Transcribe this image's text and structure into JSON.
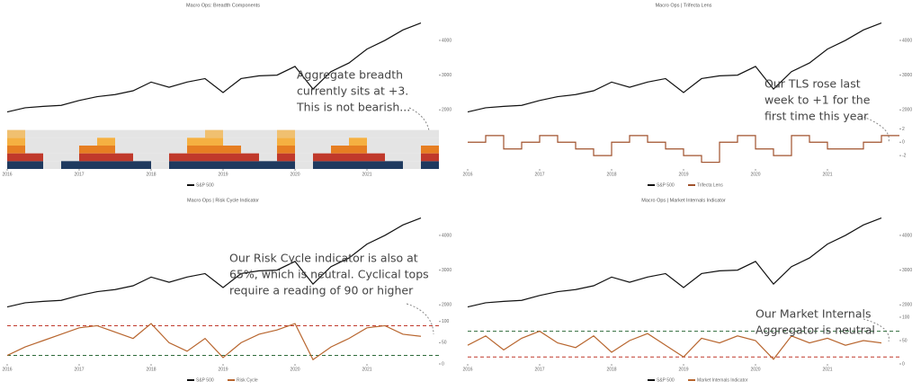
{
  "chart_data": [
    {
      "type": "breadth",
      "title": "Macro Ops: Breadth Components",
      "x": [
        2016,
        2016.25,
        2016.5,
        2016.75,
        2017,
        2017.25,
        2017.5,
        2017.75,
        2018,
        2018.25,
        2018.5,
        2018.75,
        2019,
        2019.25,
        2019.5,
        2019.75,
        2020,
        2020.25,
        2020.5,
        2020.75,
        2021,
        2021.25,
        2021.5,
        2021.75
      ],
      "xlim": [
        2016,
        2022
      ],
      "xticks": [
        2016,
        2017,
        2018,
        2019,
        2020,
        2021
      ],
      "price": {
        "name": "S&P 500",
        "color": "#111111",
        "values": [
          1940,
          2060,
          2100,
          2130,
          2270,
          2380,
          2440,
          2550,
          2800,
          2650,
          2800,
          2900,
          2500,
          2900,
          2980,
          3000,
          3250,
          2600,
          3100,
          3350,
          3750,
          4000,
          4300,
          4500
        ],
        "ylim": [
          1800,
          4800
        ],
        "yticks": [
          2000,
          3000,
          4000
        ]
      },
      "indicator": {
        "values": [
          5,
          2,
          0,
          1,
          3,
          4,
          2,
          1,
          0,
          2,
          4,
          5,
          3,
          2,
          1,
          5,
          0,
          2,
          3,
          4,
          2,
          1,
          0,
          3
        ],
        "ylim": [
          0,
          6
        ],
        "colors": [
          "#1f3a5f",
          "#c0392b",
          "#e67e22",
          "#f5b041",
          "#f0c070"
        ]
      },
      "legend": [
        "S&P 500"
      ],
      "annotation": [
        "Aggregate breadth",
        "currently sits at +3.",
        "This is not bearish..."
      ]
    },
    {
      "type": "step",
      "title": "Macro Ops | Trifecta Lens",
      "x": [
        2016,
        2016.25,
        2016.5,
        2016.75,
        2017,
        2017.25,
        2017.5,
        2017.75,
        2018,
        2018.25,
        2018.5,
        2018.75,
        2019,
        2019.25,
        2019.5,
        2019.75,
        2020,
        2020.25,
        2020.5,
        2020.75,
        2021,
        2021.25,
        2021.5,
        2021.75
      ],
      "xlim": [
        2016,
        2022
      ],
      "xticks": [
        2016,
        2017,
        2018,
        2019,
        2020,
        2021
      ],
      "price": {
        "name": "S&P 500",
        "color": "#111111",
        "values": [
          1940,
          2060,
          2100,
          2130,
          2270,
          2380,
          2440,
          2550,
          2800,
          2650,
          2800,
          2900,
          2500,
          2900,
          2980,
          3000,
          3250,
          2600,
          3100,
          3350,
          3750,
          4000,
          4300,
          4500
        ],
        "ylim": [
          1800,
          4800
        ],
        "yticks": [
          2000,
          3000,
          4000
        ]
      },
      "indicator": {
        "name": "Trifecta Lens",
        "color": "#a0522d",
        "values": [
          0,
          1,
          -1,
          0,
          1,
          0,
          -1,
          -2,
          0,
          1,
          0,
          -1,
          -2,
          -3,
          0,
          1,
          -1,
          -2,
          1,
          0,
          -1,
          -1,
          0,
          1
        ],
        "ylim": [
          -4,
          3
        ],
        "yticks": [
          -2,
          0,
          2
        ]
      },
      "legend": [
        "S&P 500",
        "Trifecta Lens"
      ],
      "annotation": [
        "Our TLS rose last",
        "week to +1 for the",
        "first time this year"
      ]
    },
    {
      "type": "line",
      "title": "Macro Ops | Risk Cycle Indicator",
      "x": [
        2016,
        2016.25,
        2016.5,
        2016.75,
        2017,
        2017.25,
        2017.5,
        2017.75,
        2018,
        2018.25,
        2018.5,
        2018.75,
        2019,
        2019.25,
        2019.5,
        2019.75,
        2020,
        2020.25,
        2020.5,
        2020.75,
        2021,
        2021.25,
        2021.5,
        2021.75
      ],
      "xlim": [
        2016,
        2022
      ],
      "xticks": [
        2016,
        2017,
        2018,
        2019,
        2020,
        2021
      ],
      "price": {
        "name": "S&P 500",
        "color": "#111111",
        "values": [
          1940,
          2060,
          2100,
          2130,
          2270,
          2380,
          2440,
          2550,
          2800,
          2650,
          2800,
          2900,
          2500,
          2900,
          2980,
          3000,
          3250,
          2600,
          3100,
          3350,
          3750,
          4000,
          4300,
          4500
        ],
        "ylim": [
          1800,
          4800
        ],
        "yticks": [
          2000,
          3000,
          4000
        ]
      },
      "indicator": {
        "name": "Risk Cycle",
        "color": "#b8662f",
        "values": [
          20,
          40,
          55,
          70,
          85,
          90,
          75,
          60,
          95,
          50,
          30,
          60,
          15,
          50,
          70,
          80,
          95,
          10,
          40,
          60,
          85,
          90,
          70,
          65
        ],
        "ylim": [
          0,
          110
        ],
        "yticks": [
          0,
          50,
          100
        ],
        "thresholds": [
          {
            "value": 90,
            "color": "#c0392b"
          },
          {
            "value": 20,
            "color": "#2e6b3a"
          }
        ]
      },
      "legend": [
        "S&P 500",
        "Risk Cycle"
      ],
      "annotation": [
        "Our Risk Cycle indicator is also at",
        "65%, which is neutral. Cyclical tops",
        "require a reading of 90 or higher"
      ]
    },
    {
      "type": "line",
      "title": "Macro Ops | Market Internals Indicator",
      "x": [
        2016,
        2016.25,
        2016.5,
        2016.75,
        2017,
        2017.25,
        2017.5,
        2017.75,
        2018,
        2018.25,
        2018.5,
        2018.75,
        2019,
        2019.25,
        2019.5,
        2019.75,
        2020,
        2020.25,
        2020.5,
        2020.75,
        2021,
        2021.25,
        2021.5,
        2021.75
      ],
      "xlim": [
        2016,
        2022
      ],
      "xticks": [
        2016,
        2017,
        2018,
        2019,
        2020,
        2021
      ],
      "price": {
        "name": "S&P 500",
        "color": "#111111",
        "values": [
          1940,
          2060,
          2100,
          2130,
          2270,
          2380,
          2440,
          2550,
          2800,
          2650,
          2800,
          2900,
          2500,
          2900,
          2980,
          3000,
          3250,
          2600,
          3100,
          3350,
          3750,
          4000,
          4300,
          4500
        ],
        "ylim": [
          1800,
          4800
        ],
        "yticks": [
          2000,
          3000,
          4000
        ]
      },
      "indicator": {
        "name": "Market Internals Indicator",
        "color": "#b8662f",
        "values": [
          40,
          60,
          30,
          55,
          70,
          45,
          35,
          60,
          25,
          50,
          65,
          40,
          15,
          55,
          45,
          60,
          50,
          10,
          60,
          45,
          55,
          40,
          50,
          45
        ],
        "ylim": [
          0,
          100
        ],
        "yticks": [
          0,
          50,
          100
        ],
        "thresholds": [
          {
            "value": 70,
            "color": "#2e6b3a"
          },
          {
            "value": 15,
            "color": "#c0392b"
          }
        ]
      },
      "legend": [
        "S&P 500",
        "Market Internals Indicator"
      ],
      "annotation": [
        "Our Market Internals",
        "Aggregator is neutral"
      ]
    }
  ]
}
